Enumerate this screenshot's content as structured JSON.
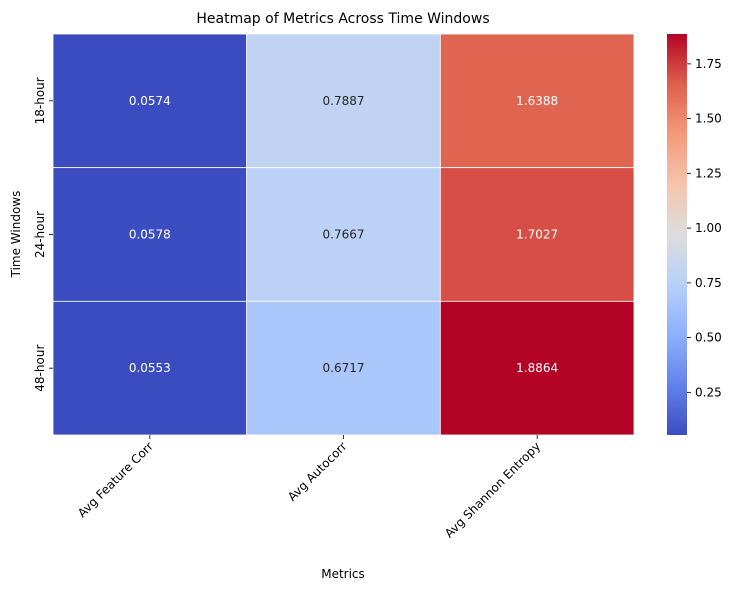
{
  "chart_data": {
    "type": "heatmap",
    "title": "Heatmap of Metrics Across Time Windows",
    "xlabel": "Metrics",
    "ylabel": "Time Windows",
    "columns": [
      "Avg Feature Corr",
      "Avg Autocorr",
      "Avg Shannon Entropy"
    ],
    "rows": [
      "18-hour",
      "24-hour",
      "48-hour"
    ],
    "values": [
      [
        0.0574,
        0.7887,
        1.6388
      ],
      [
        0.0578,
        0.7667,
        1.7027
      ],
      [
        0.0553,
        0.6717,
        1.8864
      ]
    ],
    "value_labels": [
      [
        "0.0574",
        "0.7887",
        "1.6388"
      ],
      [
        "0.0578",
        "0.7667",
        "1.7027"
      ],
      [
        "0.0553",
        "0.6717",
        "1.8864"
      ]
    ],
    "colormap": "coolwarm",
    "vmin": 0.0553,
    "vmax": 1.8864,
    "colorbar_ticks": [
      0.25,
      0.5,
      0.75,
      1.0,
      1.25,
      1.5,
      1.75
    ],
    "colorbar_tick_labels": [
      "0.25",
      "0.50",
      "0.75",
      "1.00",
      "1.25",
      "1.50",
      "1.75"
    ]
  }
}
